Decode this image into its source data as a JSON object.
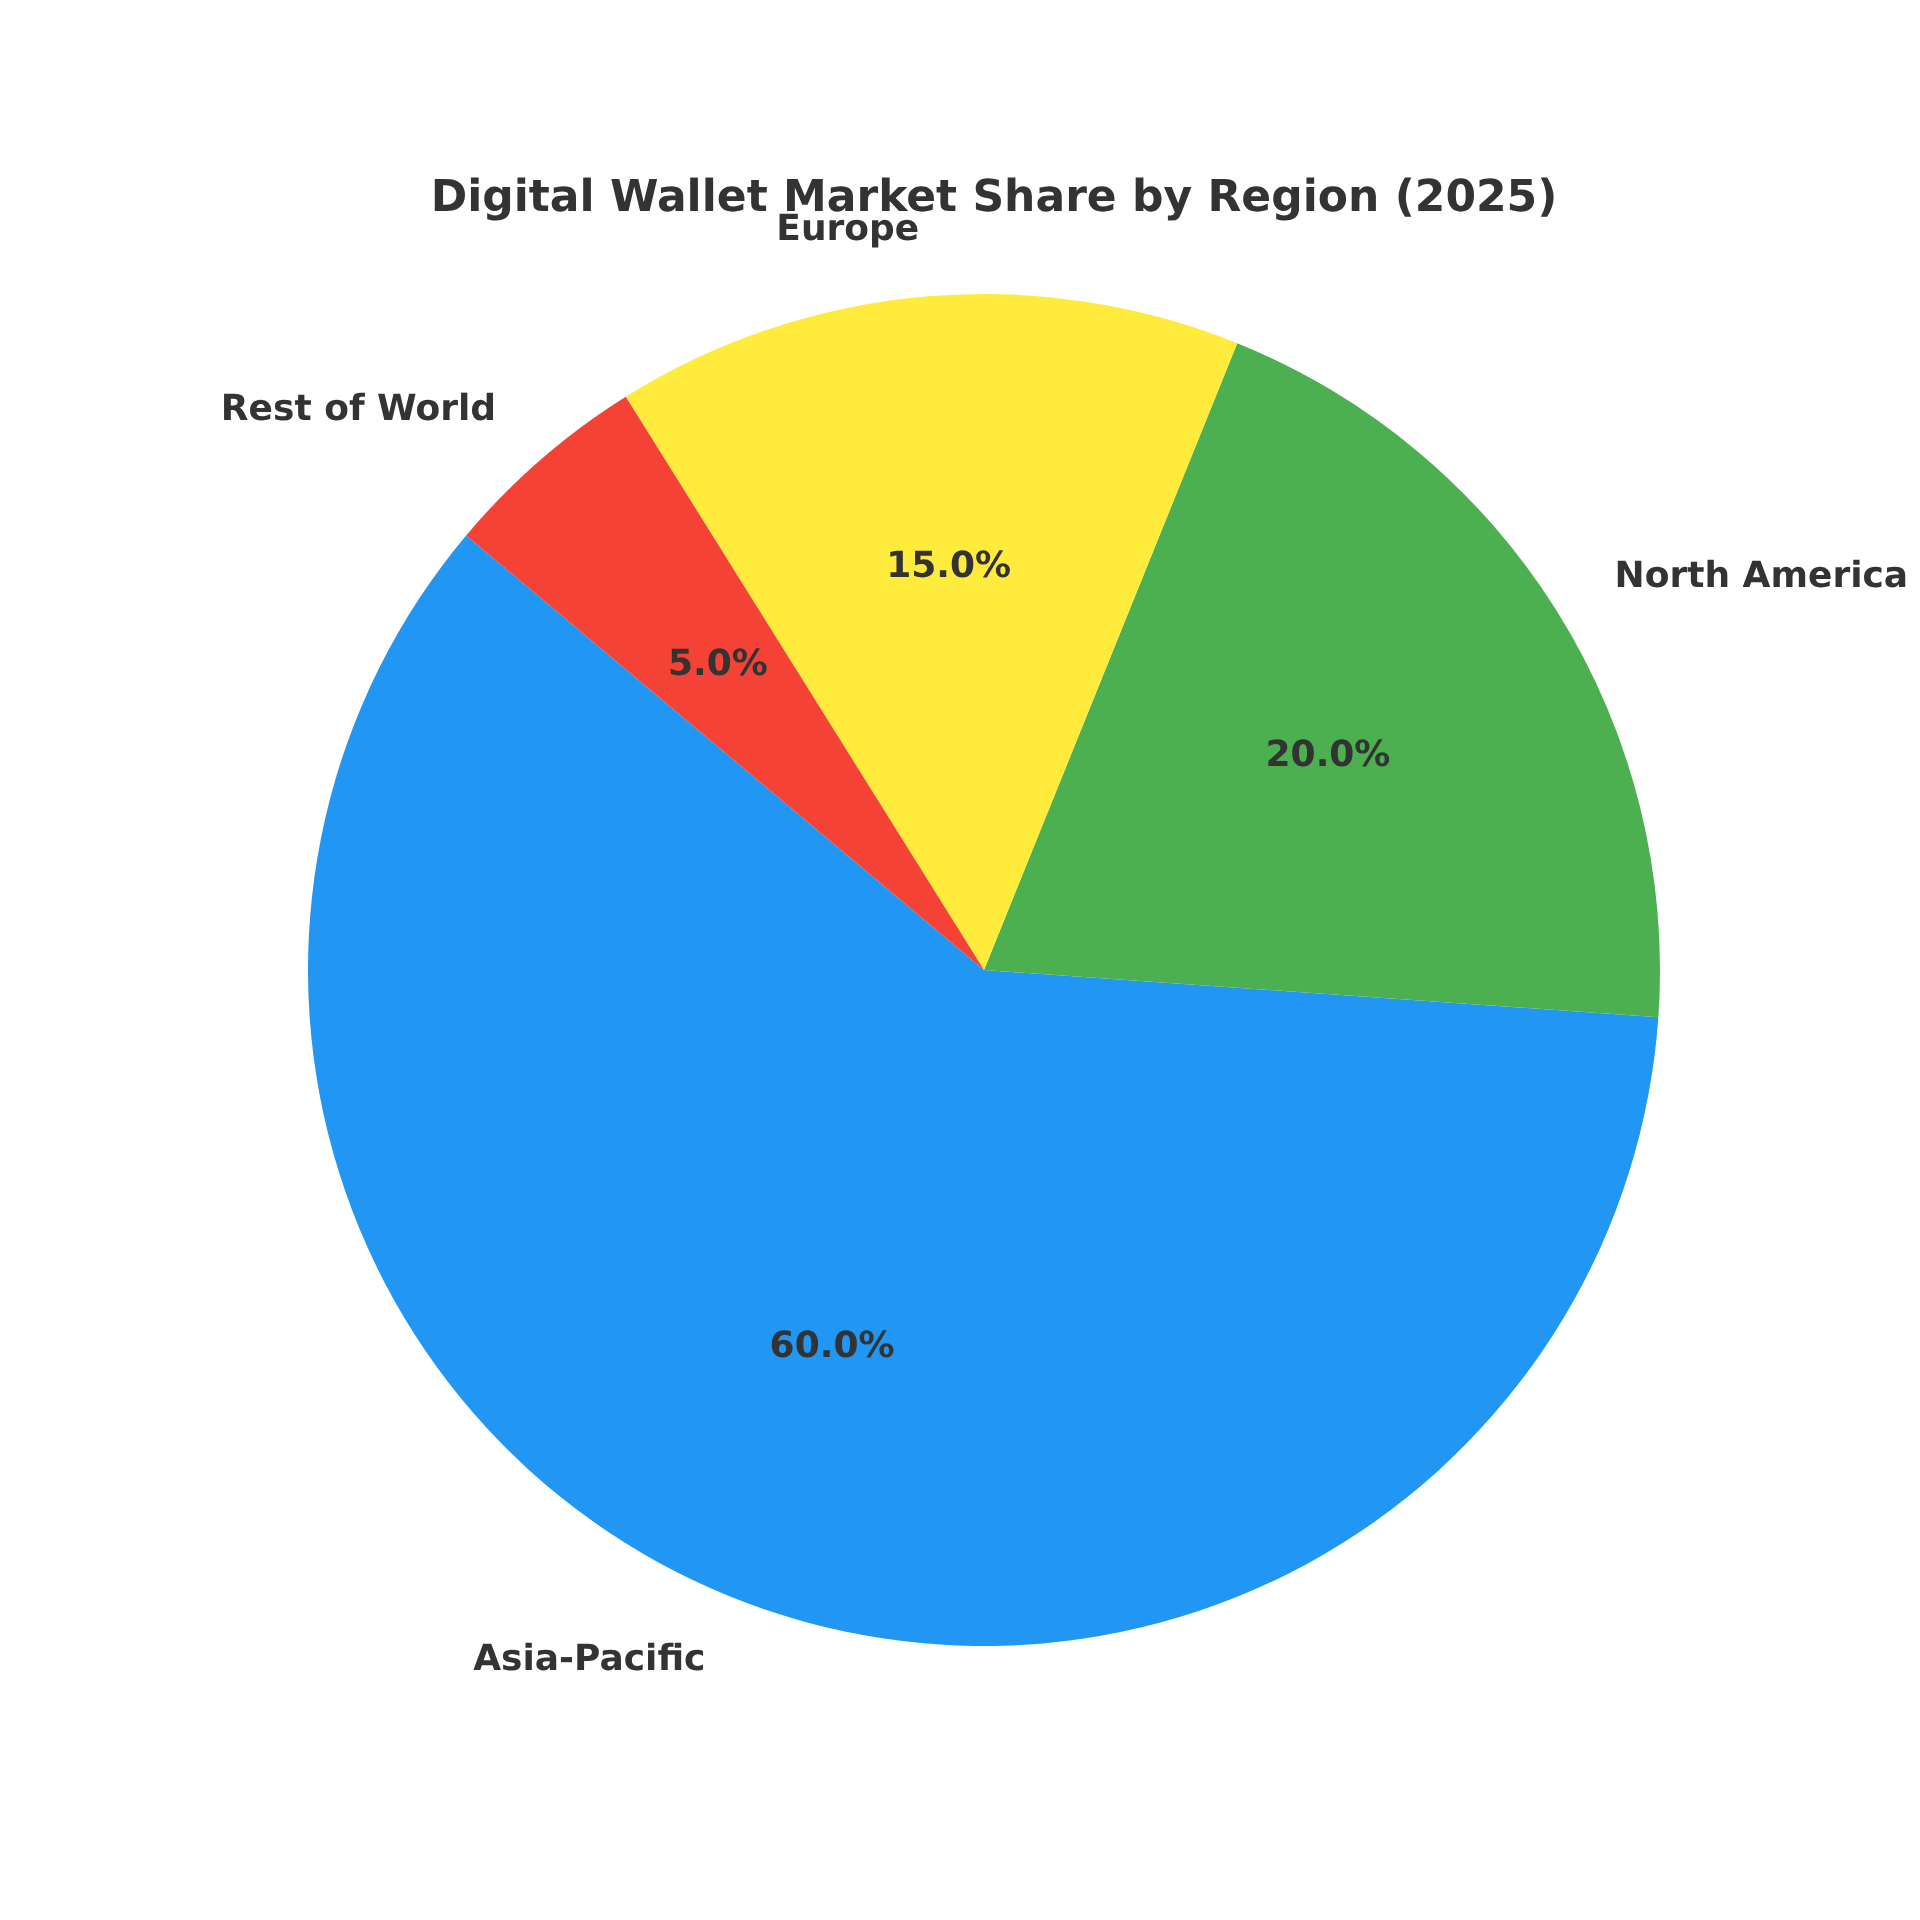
{
  "chart_data": {
    "type": "pie",
    "title": "Digital Wallet Market Share by Region (2025)",
    "categories": [
      "Asia-Pacific",
      "North America",
      "Europe",
      "Rest of World"
    ],
    "values": [
      60,
      20,
      15,
      5
    ],
    "colors": [
      "#2196f3",
      "#4caf50",
      "#ffeb3b",
      "#f44336"
    ],
    "value_labels": [
      "60.0%",
      "20.0%",
      "15.0%",
      "5.0%"
    ]
  }
}
